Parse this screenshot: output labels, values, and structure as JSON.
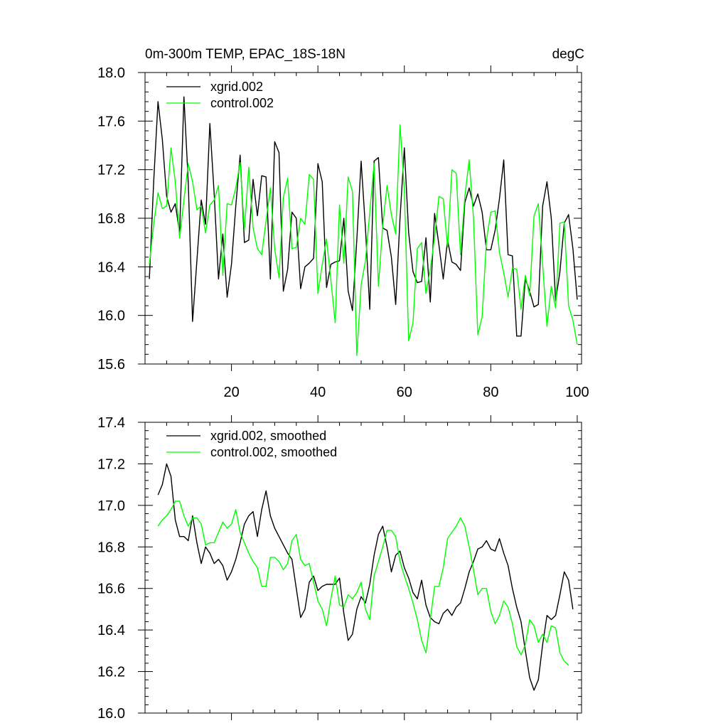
{
  "chart_data": [
    {
      "type": "line",
      "title": "0m-300m TEMP, EPAC_18S-18N",
      "units": "degC",
      "xlim": [
        0,
        101
      ],
      "ylim": [
        15.6,
        18.0
      ],
      "xticks": [
        20,
        40,
        60,
        80,
        100
      ],
      "xtick_labels": [
        "20",
        "40",
        "60",
        "80",
        "100"
      ],
      "yticks": [
        15.6,
        16.0,
        16.4,
        16.8,
        17.2,
        17.6,
        18.0
      ],
      "ytick_labels": [
        "15.6",
        "16.0",
        "16.4",
        "16.8",
        "17.2",
        "17.6",
        "18.0"
      ],
      "grid": false,
      "legend": "top-left",
      "x_start": 1,
      "series": [
        {
          "name": "xgrid.002",
          "color": "#000000",
          "values": [
            16.3,
            17.1,
            17.76,
            17.45,
            16.98,
            16.85,
            16.92,
            16.68,
            17.8,
            17.1,
            15.95,
            16.45,
            16.95,
            16.75,
            17.58,
            17.0,
            16.3,
            16.67,
            16.15,
            16.42,
            16.9,
            17.32,
            16.6,
            16.62,
            17.12,
            16.82,
            17.15,
            17.14,
            16.3,
            17.43,
            17.34,
            16.2,
            16.38,
            16.85,
            16.8,
            16.22,
            16.4,
            16.43,
            16.47,
            17.25,
            17.1,
            16.23,
            16.42,
            16.44,
            16.45,
            16.8,
            16.2,
            16.04,
            16.62,
            17.27,
            16.72,
            16.05,
            17.27,
            17.3,
            16.72,
            16.7,
            16.48,
            16.09,
            16.8,
            17.38,
            16.68,
            16.36,
            16.27,
            16.28,
            16.64,
            16.11,
            16.84,
            16.58,
            16.3,
            16.62,
            16.44,
            16.42,
            16.37,
            16.93,
            17.05,
            16.9,
            17.0,
            16.85,
            16.54,
            16.54,
            16.7,
            16.96,
            17.28,
            16.5,
            16.49,
            15.83,
            15.83,
            16.3,
            16.2,
            16.07,
            16.09,
            16.9,
            17.1,
            16.8,
            16.12,
            16.36,
            16.76,
            16.83,
            16.55,
            16.13
          ]
        },
        {
          "name": "control.002",
          "color": "#00ff00",
          "values": [
            16.42,
            16.75,
            17.01,
            16.88,
            16.9,
            17.38,
            17.1,
            16.64,
            16.95,
            17.25,
            17.1,
            16.87,
            16.9,
            16.68,
            16.91,
            16.95,
            17.07,
            16.33,
            16.92,
            16.91,
            17.05,
            17.26,
            16.7,
            17.22,
            16.72,
            16.55,
            16.5,
            16.78,
            17.05,
            16.55,
            16.31,
            16.97,
            17.13,
            16.55,
            16.56,
            16.8,
            16.75,
            17.16,
            17.12,
            16.18,
            16.42,
            16.63,
            16.29,
            15.94,
            16.91,
            16.43,
            17.14,
            17.02,
            15.67,
            16.25,
            16.45,
            16.85,
            17.25,
            16.24,
            16.74,
            17.07,
            16.83,
            16.67,
            17.57,
            17.03,
            15.79,
            15.94,
            16.55,
            16.6,
            16.18,
            16.38,
            16.64,
            16.98,
            16.96,
            16.56,
            17.2,
            17.17,
            16.5,
            16.98,
            17.28,
            16.8,
            15.84,
            15.99,
            16.62,
            16.85,
            16.86,
            16.52,
            16.35,
            16.15,
            16.39,
            16.38,
            16.05,
            16.33,
            16.16,
            16.82,
            16.92,
            16.42,
            15.91,
            16.24,
            16.06,
            16.76,
            16.77,
            16.08,
            15.96,
            15.76
          ]
        }
      ]
    },
    {
      "type": "line",
      "xlim": [
        0,
        101
      ],
      "ylim": [
        16.0,
        17.4
      ],
      "yticks": [
        16.0,
        16.2,
        16.4,
        16.6,
        16.8,
        17.0,
        17.2,
        17.4
      ],
      "ytick_labels": [
        "16.0",
        "16.2",
        "16.4",
        "16.6",
        "16.8",
        "17.0",
        "17.2",
        "17.4"
      ],
      "xticks": [
        20,
        40,
        60,
        80,
        100
      ],
      "grid": false,
      "legend": "top-left",
      "x_start": 3,
      "series": [
        {
          "name": "xgrid.002, smoothed",
          "color": "#000000",
          "values": [
            17.05,
            17.1,
            17.2,
            17.14,
            16.93,
            16.85,
            16.85,
            16.83,
            16.95,
            16.82,
            16.72,
            16.8,
            16.77,
            16.72,
            16.74,
            16.71,
            16.64,
            16.68,
            16.74,
            16.82,
            16.91,
            16.95,
            16.97,
            16.85,
            16.98,
            17.07,
            16.95,
            16.89,
            16.85,
            16.81,
            16.77,
            16.74,
            16.6,
            16.46,
            16.5,
            16.63,
            16.66,
            16.59,
            16.61,
            16.62,
            16.62,
            16.62,
            16.65,
            16.48,
            16.35,
            16.38,
            16.5,
            16.56,
            16.53,
            16.62,
            16.76,
            16.86,
            16.9,
            16.8,
            16.68,
            16.76,
            16.78,
            16.7,
            16.65,
            16.58,
            16.55,
            16.64,
            16.52,
            16.46,
            16.44,
            16.43,
            16.48,
            16.5,
            16.47,
            16.51,
            16.53,
            16.6,
            16.68,
            16.73,
            16.79,
            16.8,
            16.83,
            16.79,
            16.78,
            16.84,
            16.77,
            16.71,
            16.6,
            16.51,
            16.44,
            16.3,
            16.17,
            16.11,
            16.16,
            16.33,
            16.47,
            16.45,
            16.47,
            16.57,
            16.68,
            16.64,
            16.5
          ]
        },
        {
          "name": "control.002, smoothed",
          "color": "#00ff00",
          "values": [
            16.9,
            16.93,
            16.95,
            16.98,
            17.02,
            17.02,
            16.95,
            16.9,
            16.94,
            16.94,
            16.91,
            16.81,
            16.82,
            16.82,
            16.87,
            16.92,
            16.89,
            16.91,
            16.98,
            16.87,
            16.82,
            16.77,
            16.73,
            16.7,
            16.61,
            16.61,
            16.75,
            16.75,
            16.73,
            16.69,
            16.72,
            16.83,
            16.86,
            16.74,
            16.71,
            16.72,
            16.63,
            16.54,
            16.5,
            16.42,
            16.55,
            16.66,
            16.52,
            16.51,
            16.57,
            16.55,
            16.58,
            16.63,
            16.5,
            16.45,
            16.66,
            16.73,
            16.8,
            16.88,
            16.88,
            16.85,
            16.73,
            16.66,
            16.6,
            16.53,
            16.45,
            16.35,
            16.29,
            16.45,
            16.61,
            16.61,
            16.7,
            16.84,
            16.87,
            16.9,
            16.94,
            16.9,
            16.8,
            16.69,
            16.57,
            16.6,
            16.6,
            16.49,
            16.43,
            16.47,
            16.54,
            16.51,
            16.43,
            16.32,
            16.28,
            16.33,
            16.45,
            16.42,
            16.34,
            16.38,
            16.34,
            16.42,
            16.41,
            16.29,
            16.25,
            16.23
          ]
        }
      ]
    }
  ]
}
